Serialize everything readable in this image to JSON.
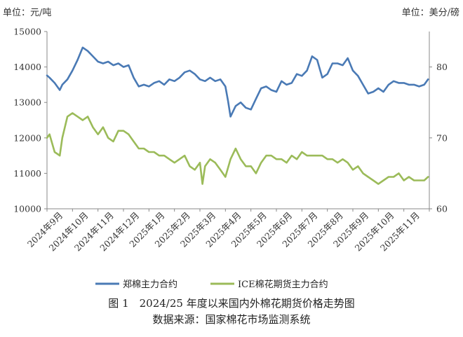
{
  "chart_data": {
    "type": "line",
    "left_unit": "单位：元/吨",
    "right_unit": "单位：美分/磅",
    "left_axis": {
      "min": 10000,
      "max": 15000,
      "ticks": [
        "10000",
        "11000",
        "12000",
        "13000",
        "14000",
        "15000"
      ]
    },
    "right_axis": {
      "min": 60,
      "max": 85,
      "ticks": [
        "60",
        "70",
        "80"
      ]
    },
    "categories": [
      "2024年9月",
      "2024年10月",
      "2024年11月",
      "2024年12月",
      "2025年1月",
      "2025年2月",
      "2025年3月",
      "2025年4月",
      "2025年5月",
      "2025年6月",
      "2025年7月",
      "2025年8月",
      "2025年9月",
      "2025年10月",
      "2025年11月"
    ],
    "grid": false,
    "legend_position": "bottom",
    "series": [
      {
        "name": "郑棉主力合约",
        "axis": "left",
        "color": "#4a7ab5",
        "x": [
          0,
          0.1,
          0.3,
          0.5,
          0.6,
          0.8,
          1.0,
          1.2,
          1.4,
          1.6,
          1.8,
          2.0,
          2.2,
          2.4,
          2.6,
          2.8,
          3.0,
          3.2,
          3.4,
          3.6,
          3.8,
          4.0,
          4.2,
          4.4,
          4.6,
          4.8,
          5.0,
          5.2,
          5.4,
          5.6,
          5.8,
          6.0,
          6.2,
          6.4,
          6.6,
          6.8,
          7.0,
          7.1,
          7.2,
          7.4,
          7.6,
          7.8,
          8.0,
          8.2,
          8.4,
          8.6,
          8.8,
          9.0,
          9.2,
          9.4,
          9.6,
          9.8,
          10.0,
          10.2,
          10.4,
          10.6,
          10.8,
          11.0,
          11.2,
          11.4,
          11.6,
          11.8,
          12.0,
          12.2,
          12.4,
          12.6,
          12.8,
          13.0,
          13.2,
          13.4,
          13.6,
          13.8,
          14.0,
          14.2,
          14.4,
          14.6,
          14.8,
          14.95
        ],
        "values": [
          13760,
          13700,
          13550,
          13350,
          13500,
          13650,
          13900,
          14200,
          14550,
          14450,
          14300,
          14150,
          14100,
          14150,
          14050,
          14100,
          14000,
          14050,
          13700,
          13450,
          13500,
          13450,
          13550,
          13600,
          13500,
          13650,
          13600,
          13700,
          13850,
          13900,
          13800,
          13650,
          13600,
          13700,
          13600,
          13650,
          13450,
          13050,
          12600,
          12900,
          13000,
          12850,
          12800,
          13100,
          13400,
          13450,
          13350,
          13300,
          13600,
          13500,
          13550,
          13800,
          13750,
          13900,
          14300,
          14200,
          13700,
          13800,
          14100,
          14100,
          14050,
          14250,
          13900,
          13750,
          13500,
          13250,
          13300,
          13400,
          13300,
          13500,
          13600,
          13550,
          13550,
          13500,
          13500,
          13450,
          13500,
          13650
        ]
      },
      {
        "name": "ICE棉花期货主力合约",
        "axis": "right",
        "color": "#9bbb59",
        "x": [
          0,
          0.1,
          0.3,
          0.5,
          0.6,
          0.8,
          1.0,
          1.2,
          1.4,
          1.6,
          1.8,
          2.0,
          2.2,
          2.4,
          2.6,
          2.8,
          3.0,
          3.2,
          3.4,
          3.6,
          3.8,
          4.0,
          4.2,
          4.4,
          4.6,
          4.8,
          5.0,
          5.2,
          5.4,
          5.6,
          5.8,
          6.0,
          6.1,
          6.2,
          6.4,
          6.6,
          6.8,
          7.0,
          7.2,
          7.4,
          7.6,
          7.8,
          8.0,
          8.2,
          8.4,
          8.6,
          8.8,
          9.0,
          9.2,
          9.4,
          9.6,
          9.8,
          10.0,
          10.2,
          10.4,
          10.6,
          10.8,
          11.0,
          11.2,
          11.4,
          11.6,
          11.8,
          12.0,
          12.2,
          12.4,
          12.6,
          12.8,
          13.0,
          13.2,
          13.4,
          13.6,
          13.8,
          14.0,
          14.2,
          14.4,
          14.6,
          14.8,
          14.95
        ],
        "values": [
          70,
          70.5,
          68,
          67.5,
          70,
          73,
          73.5,
          73,
          72.5,
          73,
          71.5,
          70.5,
          71.5,
          70,
          69.5,
          71,
          71,
          70.5,
          69.5,
          68.5,
          68.5,
          68,
          68,
          67.5,
          67.5,
          67,
          66.5,
          67,
          67.5,
          66,
          65.5,
          66.5,
          63.5,
          66,
          67,
          66.5,
          65.5,
          64.5,
          67,
          68.5,
          67,
          66,
          66,
          65,
          66.5,
          67.5,
          67.5,
          67,
          67,
          66.5,
          67.5,
          67,
          68,
          67.5,
          67.5,
          67.5,
          67.5,
          67,
          67,
          66.5,
          67,
          66.5,
          65.5,
          66,
          65,
          64.5,
          64,
          63.5,
          64,
          64.5,
          64.5,
          65,
          64,
          64.5,
          64,
          64,
          64,
          64.5
        ]
      }
    ]
  },
  "caption": {
    "title": "图 1　2024/25 年度以来国内外棉花期货价格走势图",
    "source": "数据来源：国家棉花市场监测系统"
  }
}
